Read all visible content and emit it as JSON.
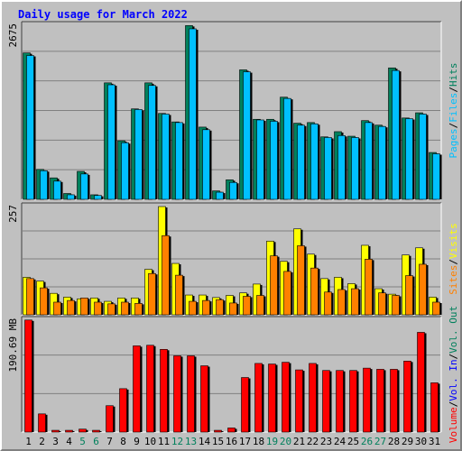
{
  "title": "Daily usage for March 2022",
  "colors": {
    "background": "#c0c0c0",
    "plot": "#c0c0c0",
    "grid": "#808080",
    "title": "#0000ff",
    "hits": "#00805c",
    "files": "#00c0ff",
    "pages": "#00c0ff",
    "visits": "#ffff00",
    "sites": "#ff8000",
    "kbytes": "#ff0000",
    "weekend_day": "#00805c",
    "weekday": "#000000"
  },
  "chart_data": [
    {
      "type": "bar",
      "panel": "requests",
      "y_label": "2675",
      "ylim": [
        0,
        2675
      ],
      "grid_lines": 6,
      "legend": [
        {
          "label": "Hits",
          "color": "#00805c"
        },
        {
          "label": "Files",
          "color": "#00c0ff"
        },
        {
          "label": "Pages",
          "color": "#00c0ff"
        }
      ],
      "categories": [
        "1",
        "2",
        "3",
        "4",
        "5",
        "6",
        "7",
        "8",
        "9",
        "10",
        "11",
        "12",
        "13",
        "14",
        "15",
        "16",
        "17",
        "18",
        "19",
        "20",
        "21",
        "22",
        "23",
        "24",
        "25",
        "26",
        "27",
        "28",
        "29",
        "30",
        "31"
      ],
      "series": [
        {
          "name": "Hits",
          "values": [
            2250,
            460,
            330,
            90,
            430,
            70,
            1790,
            900,
            1390,
            1790,
            1320,
            1190,
            2670,
            1110,
            130,
            300,
            1990,
            1230,
            1230,
            1570,
            1170,
            1180,
            960,
            1040,
            970,
            1210,
            1140,
            2020,
            1250,
            1330,
            720
          ]
        },
        {
          "name": "Files",
          "values": [
            2210,
            440,
            280,
            70,
            390,
            60,
            1760,
            870,
            1380,
            1750,
            1310,
            1180,
            2620,
            1070,
            110,
            260,
            1960,
            1220,
            1200,
            1550,
            1140,
            1160,
            950,
            980,
            950,
            1180,
            1120,
            1980,
            1240,
            1310,
            700
          ]
        }
      ]
    },
    {
      "type": "bar",
      "panel": "visits",
      "y_label": "257",
      "ylim": [
        0,
        257
      ],
      "grid_lines": 4,
      "legend": [
        {
          "label": "Visits",
          "color": "#ffff00"
        },
        {
          "label": "Sites",
          "color": "#ff8000"
        }
      ],
      "categories": [
        "1",
        "2",
        "3",
        "4",
        "5",
        "6",
        "7",
        "8",
        "9",
        "10",
        "11",
        "12",
        "13",
        "14",
        "15",
        "16",
        "17",
        "18",
        "19",
        "20",
        "21",
        "22",
        "23",
        "24",
        "25",
        "26",
        "27",
        "28",
        "29",
        "30",
        "31"
      ],
      "series": [
        {
          "name": "Visits",
          "values": [
            89,
            80,
            51,
            42,
            38,
            40,
            32,
            40,
            40,
            108,
            257,
            122,
            47,
            47,
            41,
            46,
            52,
            73,
            175,
            127,
            204,
            144,
            86,
            89,
            74,
            165,
            62,
            49,
            142,
            159,
            42
          ]
        },
        {
          "name": "Sites",
          "values": [
            86,
            64,
            30,
            34,
            40,
            30,
            26,
            30,
            27,
            98,
            188,
            94,
            32,
            34,
            36,
            28,
            44,
            46,
            140,
            103,
            164,
            111,
            54,
            60,
            62,
            132,
            52,
            46,
            93,
            120,
            30
          ]
        }
      ]
    },
    {
      "type": "bar",
      "panel": "volume",
      "y_label": "190.69 MB",
      "ylim": [
        0,
        190.69
      ],
      "grid_lines": 3,
      "legend": [
        {
          "label": "Vol. Out",
          "color": "#00805c"
        },
        {
          "label": "Vol. In",
          "color": "#0000ff"
        },
        {
          "label": "Volume",
          "color": "#ff0000"
        }
      ],
      "categories": [
        "1",
        "2",
        "3",
        "4",
        "5",
        "6",
        "7",
        "8",
        "9",
        "10",
        "11",
        "12",
        "13",
        "14",
        "15",
        "16",
        "17",
        "18",
        "19",
        "20",
        "21",
        "22",
        "23",
        "24",
        "25",
        "26",
        "27",
        "28",
        "29",
        "30",
        "31"
      ],
      "series": [
        {
          "name": "Volume",
          "values": [
            191,
            31,
            3,
            3,
            5,
            3,
            45,
            74,
            147,
            148,
            141,
            130,
            130,
            113,
            3,
            7,
            93,
            117,
            116,
            119,
            106,
            117,
            105,
            105,
            105,
            109,
            107,
            107,
            121,
            170,
            84
          ]
        }
      ],
      "weekend_days": [
        "5",
        "6",
        "12",
        "13",
        "19",
        "20",
        "26",
        "27"
      ]
    }
  ]
}
